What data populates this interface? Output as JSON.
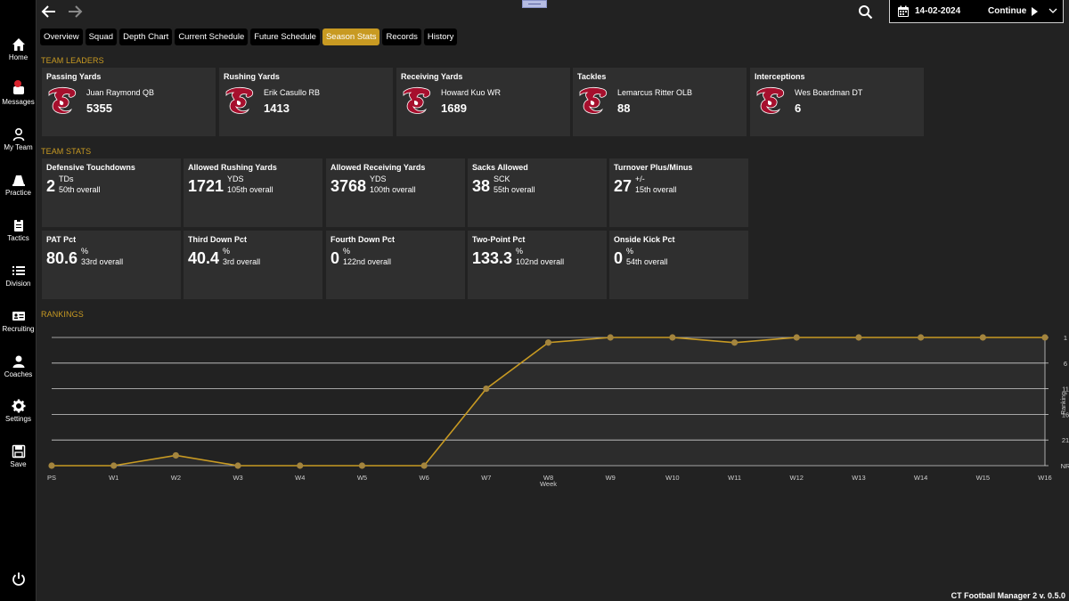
{
  "nav": {
    "home": "Home",
    "messages": "Messages",
    "my_team": "My Team",
    "practice": "Practice",
    "tactics": "Tactics",
    "division": "Division",
    "recruiting": "Recruiting",
    "coaches": "Coaches",
    "settings": "Settings",
    "save": "Save"
  },
  "topbar": {
    "date": "14-02-2024",
    "continue_label": "Continue"
  },
  "tabs": [
    "Overview",
    "Squad",
    "Depth Chart",
    "Current Schedule",
    "Future Schedule",
    "Season Stats",
    "Records",
    "History"
  ],
  "active_tab": "Season Stats",
  "sections": {
    "leaders": "TEAM LEADERS",
    "stats": "TEAM STATS",
    "rankings": "RANKINGS"
  },
  "leaders": [
    {
      "title": "Passing Yards",
      "player": "Juan Raymond QB",
      "value": "5355"
    },
    {
      "title": "Rushing Yards",
      "player": "Erik Casullo RB",
      "value": "1413"
    },
    {
      "title": "Receiving Yards",
      "player": "Howard Kuo WR",
      "value": "1689"
    },
    {
      "title": "Tackles",
      "player": "Lemarcus Ritter OLB",
      "value": "88"
    },
    {
      "title": "Interceptions",
      "player": "Wes Boardman DT",
      "value": "6"
    }
  ],
  "stats": [
    {
      "title": "Defensive Touchdowns",
      "value": "2",
      "unit": "TDs",
      "rank": "50th overall"
    },
    {
      "title": "Allowed Rushing Yards",
      "value": "1721",
      "unit": "YDS",
      "rank": "105th overall"
    },
    {
      "title": "Allowed Receiving Yards",
      "value": "3768",
      "unit": "YDS",
      "rank": "100th overall"
    },
    {
      "title": "Sacks Allowed",
      "value": "38",
      "unit": "SCK",
      "rank": "55th overall"
    },
    {
      "title": "Turnover Plus/Minus",
      "value": "27",
      "unit": "+/-",
      "rank": "15th overall"
    },
    {
      "title": "PAT Pct",
      "value": "80.6",
      "unit": "%",
      "rank": "33rd overall"
    },
    {
      "title": "Third Down Pct",
      "value": "40.4",
      "unit": "%",
      "rank": "3rd overall"
    },
    {
      "title": "Fourth Down Pct",
      "value": "0",
      "unit": "%",
      "rank": "122nd overall"
    },
    {
      "title": "Two-Point Pct",
      "value": "133.3",
      "unit": "%",
      "rank": "102nd overall"
    },
    {
      "title": "Onside Kick Pct",
      "value": "0",
      "unit": "%",
      "rank": "54th overall"
    }
  ],
  "chart_data": {
    "type": "line",
    "x": [
      "PS",
      "W1",
      "W2",
      "W3",
      "W4",
      "W5",
      "W6",
      "W7",
      "W8",
      "W9",
      "W10",
      "W11",
      "W12",
      "W13",
      "W14",
      "W15",
      "W16"
    ],
    "values": [
      26,
      26,
      24,
      26,
      26,
      26,
      26,
      11,
      2,
      1,
      1,
      2,
      1,
      1,
      1,
      1,
      1
    ],
    "y_ticks": [
      "1",
      "6",
      "11",
      "16",
      "21",
      "NR"
    ],
    "y_tick_values": [
      1,
      6,
      11,
      16,
      21,
      26
    ],
    "xlabel": "Week",
    "ylabel": "Ranking",
    "ylim": [
      1,
      26
    ],
    "inverted_y": true,
    "grid": true,
    "line_color": "#c89a22"
  },
  "version": "CT Football Manager 2 v. 0.5.0",
  "colors": {
    "accent": "#c89a22",
    "card_bg": "#2f2f2f",
    "page_bg": "#222222",
    "logo": "#a60f2d"
  }
}
